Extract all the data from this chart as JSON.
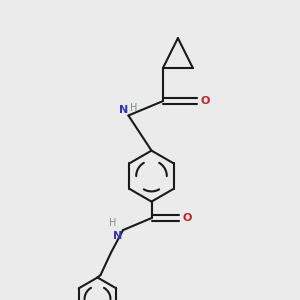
{
  "background_color": "#ebebeb",
  "bond_color": "#1a1a1a",
  "N_color": "#3333bb",
  "O_color": "#cc2020",
  "H_color": "#7a9090",
  "line_width": 1.5,
  "figsize": [
    3.0,
    3.0
  ],
  "dpi": 100,
  "xlim": [
    0,
    10
  ],
  "ylim": [
    0,
    10
  ]
}
